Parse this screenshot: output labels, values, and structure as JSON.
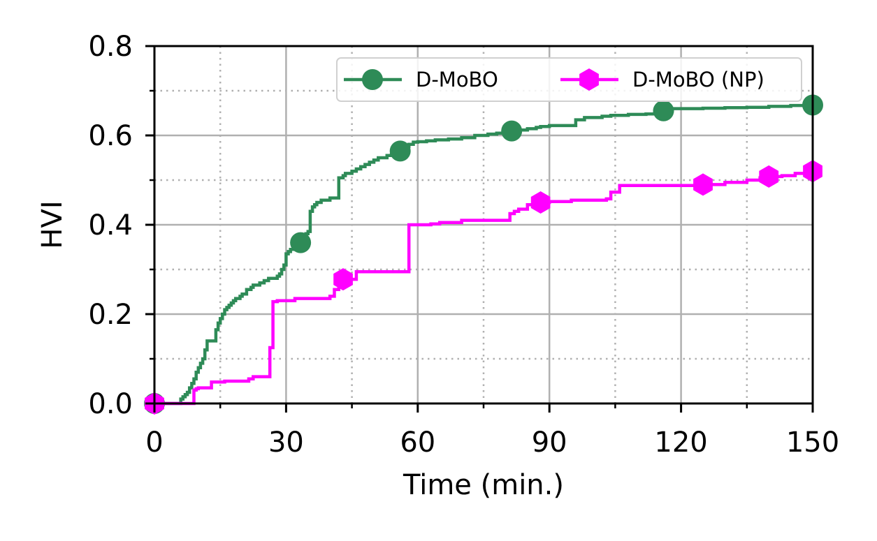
{
  "chart_data": {
    "type": "line",
    "xlabel": "Time (min.)",
    "ylabel": "HVI",
    "xlim": [
      0,
      150
    ],
    "ylim": [
      0,
      0.8
    ],
    "xticks": [
      0,
      30,
      60,
      90,
      120,
      150
    ],
    "xtick_labels": [
      "0",
      "30",
      "60",
      "90",
      "120",
      "150"
    ],
    "yticks": [
      0,
      0.2,
      0.4,
      0.6,
      0.8
    ],
    "ytick_labels": [
      "0.0",
      "0.2",
      "0.4",
      "0.6",
      "0.8"
    ],
    "x_minor_ticks": [
      15,
      45,
      75,
      105,
      135
    ],
    "y_minor_ticks": [
      0.1,
      0.3,
      0.5,
      0.7
    ],
    "grid": true,
    "legend_position": "top-right",
    "series": [
      {
        "name": "D-MoBO",
        "color": "#2e8b57",
        "marker": "circle",
        "step": true,
        "x": [
          0,
          6,
          6.5,
          7,
          7.5,
          8,
          8.5,
          9,
          9.5,
          10,
          10.5,
          11,
          11.5,
          12,
          12.5,
          13,
          13.5,
          14,
          14.5,
          15,
          15.5,
          16,
          16.5,
          17,
          17.5,
          18,
          18.5,
          19,
          19.5,
          20,
          21,
          22,
          22.5,
          23,
          24,
          25,
          26,
          27,
          28,
          28.5,
          29,
          29.5,
          30,
          30.5,
          31,
          32,
          33.3,
          34,
          34.5,
          35,
          35.5,
          36,
          36.5,
          37,
          38,
          39,
          40,
          41,
          42,
          43,
          43.5,
          44,
          45,
          46,
          47,
          48,
          49,
          50,
          51,
          52,
          53,
          54,
          55,
          56,
          57,
          58,
          59,
          60,
          62,
          64,
          67,
          70,
          73,
          76,
          78,
          80,
          81.4,
          83,
          85,
          87,
          88,
          90,
          92,
          94,
          95,
          96,
          97,
          98,
          100,
          102,
          104,
          106,
          108,
          110,
          112,
          114,
          116,
          118,
          120,
          125,
          130,
          135,
          140,
          145,
          148.5,
          150
        ],
        "y": [
          0,
          0.01,
          0.015,
          0.02,
          0.025,
          0.035,
          0.045,
          0.055,
          0.07,
          0.08,
          0.09,
          0.1,
          0.12,
          0.14,
          0.14,
          0.14,
          0.14,
          0.165,
          0.18,
          0.19,
          0.2,
          0.21,
          0.215,
          0.22,
          0.225,
          0.23,
          0.235,
          0.235,
          0.24,
          0.245,
          0.255,
          0.26,
          0.265,
          0.265,
          0.27,
          0.275,
          0.28,
          0.28,
          0.285,
          0.29,
          0.3,
          0.31,
          0.335,
          0.34,
          0.345,
          0.35,
          0.36,
          0.36,
          0.38,
          0.385,
          0.43,
          0.44,
          0.445,
          0.45,
          0.455,
          0.455,
          0.46,
          0.46,
          0.505,
          0.51,
          0.515,
          0.515,
          0.52,
          0.525,
          0.53,
          0.535,
          0.54,
          0.545,
          0.55,
          0.55,
          0.555,
          0.557,
          0.56,
          0.565,
          0.575,
          0.58,
          0.585,
          0.586,
          0.588,
          0.59,
          0.592,
          0.595,
          0.6,
          0.603,
          0.605,
          0.607,
          0.61,
          0.612,
          0.615,
          0.618,
          0.62,
          0.622,
          0.622,
          0.622,
          0.622,
          0.635,
          0.635,
          0.64,
          0.64,
          0.643,
          0.645,
          0.645,
          0.647,
          0.647,
          0.648,
          0.65,
          0.655,
          0.66,
          0.66,
          0.661,
          0.662,
          0.663,
          0.665,
          0.667,
          0.667,
          0.668
        ]
      },
      {
        "name": "D-MoBO (NP)",
        "color": "#ff00ff",
        "marker": "hexagon",
        "step": true,
        "x": [
          0,
          5,
          9,
          9.5,
          10,
          12,
          13,
          16,
          21.5,
          22.5,
          25,
          26.3,
          27,
          28,
          30,
          32,
          35,
          38,
          40,
          41,
          42,
          43,
          46,
          50,
          52,
          57,
          58,
          60,
          63,
          65,
          70,
          75,
          80,
          81,
          82,
          83,
          85,
          88,
          90,
          95,
          100,
          103,
          104,
          106,
          110,
          115,
          120,
          125,
          130,
          135,
          138,
          140,
          143,
          146,
          148,
          150
        ],
        "y": [
          0,
          0,
          0.03,
          0.033,
          0.035,
          0.035,
          0.048,
          0.05,
          0.055,
          0.06,
          0.06,
          0.125,
          0.228,
          0.23,
          0.23,
          0.235,
          0.235,
          0.235,
          0.24,
          0.255,
          0.27,
          0.278,
          0.295,
          0.295,
          0.295,
          0.295,
          0.4,
          0.4,
          0.402,
          0.405,
          0.41,
          0.41,
          0.41,
          0.425,
          0.43,
          0.435,
          0.445,
          0.45,
          0.452,
          0.455,
          0.455,
          0.458,
          0.473,
          0.488,
          0.488,
          0.488,
          0.488,
          0.49,
          0.495,
          0.5,
          0.505,
          0.508,
          0.51,
          0.515,
          0.515,
          0.52
        ]
      }
    ]
  }
}
